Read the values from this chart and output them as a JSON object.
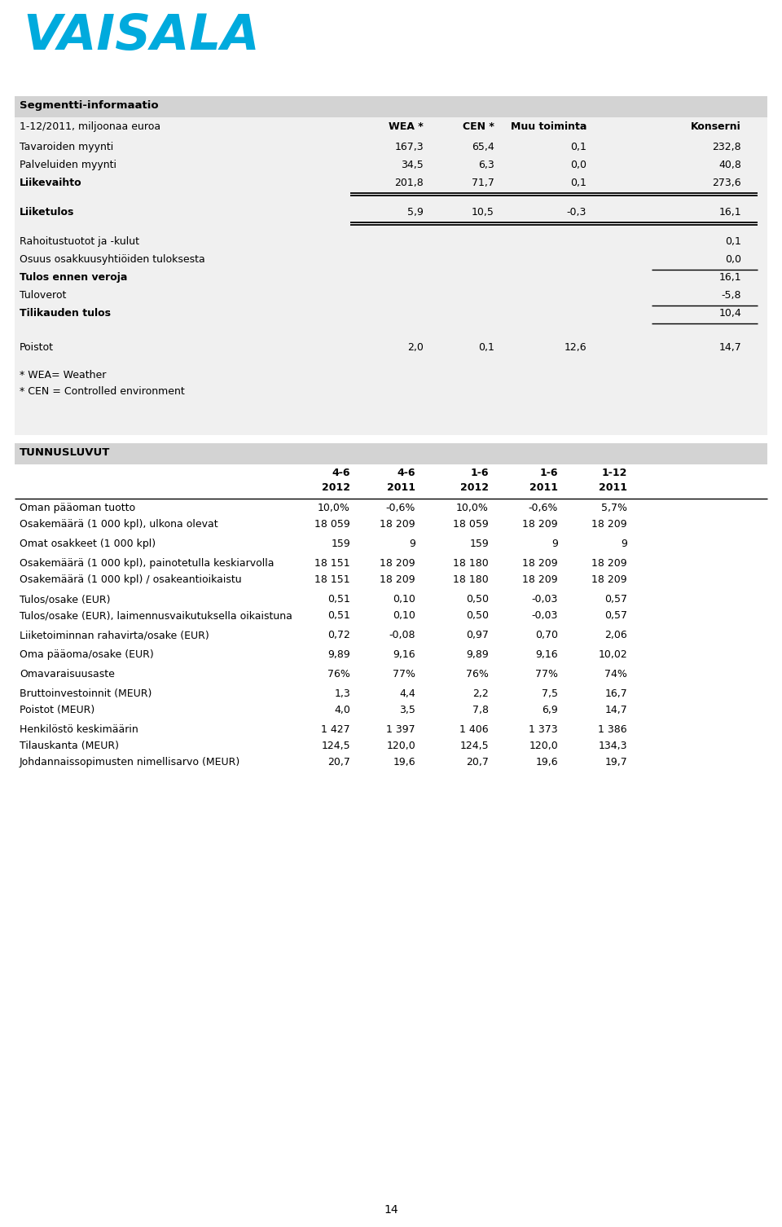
{
  "bg_color": "#ffffff",
  "logo_color": "#00aadd",
  "logo_text": "VAISALA",
  "section1_header": "Segmentti-informaatio",
  "section1_subheader": "1-12/2011, miljoonaa euroa",
  "col_headers_1": [
    "WEA *",
    "CEN *",
    "Muu toiminta",
    "Konserni"
  ],
  "rows_seg": [
    {
      "label": "Tavaroiden myynti",
      "bold": false,
      "values": [
        "167,3",
        "65,4",
        "0,1",
        "232,8"
      ],
      "dbl_below": false,
      "sgl_below": false,
      "sgl_below_konserni": false,
      "extra_above": 0
    },
    {
      "label": "Palveluiden myynti",
      "bold": false,
      "values": [
        "34,5",
        "6,3",
        "0,0",
        "40,8"
      ],
      "dbl_below": false,
      "sgl_below": false,
      "sgl_below_konserni": false,
      "extra_above": 0
    },
    {
      "label": "Liikevaihto",
      "bold": true,
      "values": [
        "201,8",
        "71,7",
        "0,1",
        "273,6"
      ],
      "dbl_below": true,
      "sgl_below": false,
      "sgl_below_konserni": false,
      "extra_above": 0
    },
    {
      "label": "Liiketulos",
      "bold": true,
      "values": [
        "5,9",
        "10,5",
        "-0,3",
        "16,1"
      ],
      "dbl_below": true,
      "sgl_below": false,
      "sgl_below_konserni": false,
      "extra_above": 14
    },
    {
      "label": "Rahoitustuotot ja -kulut",
      "bold": false,
      "values": [
        "",
        "",
        "",
        "0,1"
      ],
      "dbl_below": false,
      "sgl_below": false,
      "sgl_below_konserni": false,
      "extra_above": 14
    },
    {
      "label": "Osuus osakkuusyhtiöiden tuloksesta",
      "bold": false,
      "values": [
        "",
        "",
        "",
        "0,0"
      ],
      "dbl_below": false,
      "sgl_below": false,
      "sgl_below_konserni": true,
      "extra_above": 0
    },
    {
      "label": "Tulos ennen veroja",
      "bold": true,
      "values": [
        "",
        "",
        "",
        "16,1"
      ],
      "dbl_below": false,
      "sgl_below": false,
      "sgl_below_konserni": false,
      "extra_above": 0
    },
    {
      "label": "Tuloverot",
      "bold": false,
      "values": [
        "",
        "",
        "",
        "-5,8"
      ],
      "dbl_below": false,
      "sgl_below": false,
      "sgl_below_konserni": true,
      "extra_above": 0
    },
    {
      "label": "Tilikauden tulos",
      "bold": true,
      "values": [
        "",
        "",
        "",
        "10,4"
      ],
      "dbl_below": false,
      "sgl_below": false,
      "sgl_below_konserni": true,
      "extra_above": 0
    },
    {
      "label": "Poistot",
      "bold": false,
      "values": [
        "2,0",
        "0,1",
        "12,6",
        "14,7"
      ],
      "dbl_below": false,
      "sgl_below": false,
      "sgl_below_konserni": false,
      "extra_above": 20
    }
  ],
  "footnotes": [
    "* WEA= Weather",
    "* CEN = Controlled environment"
  ],
  "section2_header": "TUNNUSLUVUT",
  "col_headers_2a": [
    "4-6",
    "4-6",
    "1-6",
    "1-6",
    "1-12"
  ],
  "col_headers_2b": [
    "2012",
    "2011",
    "2012",
    "2011",
    "2011"
  ],
  "rows_tun": [
    {
      "label": "Oman pääoman tuotto",
      "values": [
        "10,0%",
        "-0,6%",
        "10,0%",
        "-0,6%",
        "5,7%"
      ],
      "extra_above": 0
    },
    {
      "label": "Osakemäärä (1 000 kpl), ulkona olevat",
      "values": [
        "18 059",
        "18 209",
        "18 059",
        "18 209",
        "18 209"
      ],
      "extra_above": 0
    },
    {
      "label": "Omat osakkeet (1 000 kpl)",
      "values": [
        "159",
        "9",
        "159",
        "9",
        "9"
      ],
      "extra_above": 4
    },
    {
      "label": "Osakemäärä (1 000 kpl), painotetulla keskiarvolla",
      "values": [
        "18 151",
        "18 209",
        "18 180",
        "18 209",
        "18 209"
      ],
      "extra_above": 4
    },
    {
      "label": "Osakemäärä (1 000 kpl) / osakeantioikaistu",
      "values": [
        "18 151",
        "18 209",
        "18 180",
        "18 209",
        "18 209"
      ],
      "extra_above": 0
    },
    {
      "label": "Tulos/osake (EUR)",
      "values": [
        "0,51",
        "0,10",
        "0,50",
        "-0,03",
        "0,57"
      ],
      "extra_above": 4
    },
    {
      "label": "Tulos/osake (EUR), laimennusvaikutuksella oikaistuna",
      "values": [
        "0,51",
        "0,10",
        "0,50",
        "-0,03",
        "0,57"
      ],
      "extra_above": 0
    },
    {
      "label": "Liiketoiminnan rahavirta/osake (EUR)",
      "values": [
        "0,72",
        "-0,08",
        "0,97",
        "0,70",
        "2,06"
      ],
      "extra_above": 4
    },
    {
      "label": "Oma pääoma/osake (EUR)",
      "values": [
        "9,89",
        "9,16",
        "9,89",
        "9,16",
        "10,02"
      ],
      "extra_above": 4
    },
    {
      "label": "Omavaraisuusaste",
      "values": [
        "76%",
        "77%",
        "76%",
        "77%",
        "74%"
      ],
      "extra_above": 4
    },
    {
      "label": "Bruttoinvestoinnit (MEUR)",
      "values": [
        "1,3",
        "4,4",
        "2,2",
        "7,5",
        "16,7"
      ],
      "extra_above": 4
    },
    {
      "label": "Poistot (MEUR)",
      "values": [
        "4,0",
        "3,5",
        "7,8",
        "6,9",
        "14,7"
      ],
      "extra_above": 0
    },
    {
      "label": "Henkilöstö keskimäärin",
      "values": [
        "1 427",
        "1 397",
        "1 406",
        "1 373",
        "1 386"
      ],
      "extra_above": 4
    },
    {
      "label": "Tilauskanta (MEUR)",
      "values": [
        "124,5",
        "120,0",
        "124,5",
        "120,0",
        "134,3"
      ],
      "extra_above": 0
    },
    {
      "label": "Johdannaissopimusten nimellisarvo (MEUR)",
      "values": [
        "20,7",
        "19,6",
        "20,7",
        "19,6",
        "19,7"
      ],
      "extra_above": 0
    }
  ],
  "page_number": "14"
}
